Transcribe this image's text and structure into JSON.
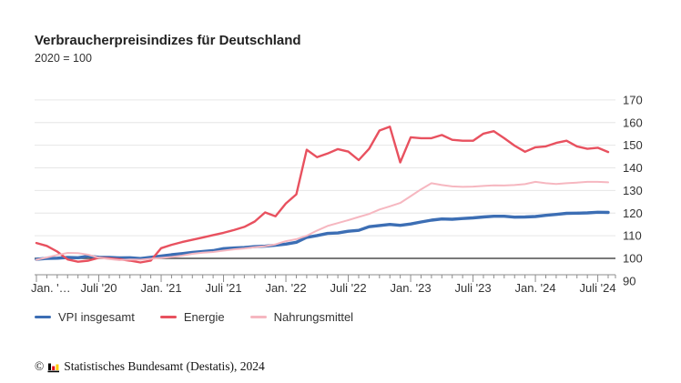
{
  "header": {
    "title": "Verbraucherpreisindizes für Deutschland",
    "subtitle": "2020 = 100"
  },
  "legend": {
    "items": [
      {
        "label": "VPI insgesamt",
        "color": "#3c6eb4"
      },
      {
        "label": "Energie",
        "color": "#e8515f"
      },
      {
        "label": "Nahrungsmittel",
        "color": "#f6b7c0"
      }
    ]
  },
  "footer": {
    "copyright_symbol": "©",
    "source_text": "Statistisches Bundesamt (Destatis), 2024",
    "logo_bar_colors": [
      "#000000",
      "#e30613",
      "#ffcc00"
    ]
  },
  "chart_data": {
    "type": "line",
    "title": "Verbraucherpreisindizes für Deutschland",
    "subtitle": "2020 = 100",
    "x_unit": "month",
    "x_start": "2020-01",
    "x_end": "2024-08",
    "x_tick_labels": [
      {
        "i": 0,
        "label": "Jan. '…"
      },
      {
        "i": 6,
        "label": "Juli '20"
      },
      {
        "i": 12,
        "label": "Jan. '21"
      },
      {
        "i": 18,
        "label": "Juli '21"
      },
      {
        "i": 24,
        "label": "Jan. '22"
      },
      {
        "i": 30,
        "label": "Juli '22"
      },
      {
        "i": 36,
        "label": "Jan. '23"
      },
      {
        "i": 42,
        "label": "Juli '23"
      },
      {
        "i": 48,
        "label": "Jan. '24"
      },
      {
        "i": 54,
        "label": "Juli '24"
      }
    ],
    "y_ticks": [
      90,
      100,
      110,
      120,
      130,
      140,
      150,
      160,
      170
    ],
    "ylim": [
      90,
      170
    ],
    "baseline_value": 100,
    "grid": "horizontal-light",
    "y_axis_side": "right",
    "legend_position": "bottom-left",
    "colors": {
      "grid": "#e6e6e6",
      "baseline": "#4d4d4d",
      "axis": "#8c8c8c",
      "tick_text": "#333333"
    },
    "series": [
      {
        "name": "VPI insgesamt",
        "color": "#3c6eb4",
        "stroke_width": 3.4,
        "values": [
          99.6,
          100.0,
          100.1,
          100.4,
          100.3,
          101.0,
          100.5,
          100.4,
          100.2,
          100.3,
          99.9,
          100.5,
          101.0,
          101.6,
          102.1,
          102.6,
          103.0,
          103.4,
          104.3,
          104.6,
          104.8,
          105.2,
          105.4,
          105.8,
          106.3,
          107.1,
          109.3,
          110.1,
          111.0,
          111.2,
          112.0,
          112.4,
          114.0,
          114.5,
          115.0,
          114.6,
          115.2,
          116.1,
          116.9,
          117.4,
          117.3,
          117.6,
          117.9,
          118.3,
          118.6,
          118.6,
          118.2,
          118.3,
          118.5,
          119.0,
          119.4,
          119.9,
          120.0,
          120.1,
          120.4,
          120.3
        ]
      },
      {
        "name": "Energie",
        "color": "#e8515f",
        "stroke_width": 2.4,
        "values": [
          106.8,
          105.5,
          103.0,
          99.5,
          98.5,
          99.0,
          100.3,
          100.0,
          99.6,
          99.0,
          98.2,
          99.0,
          104.5,
          106.0,
          107.2,
          108.2,
          109.2,
          110.3,
          111.3,
          112.5,
          113.9,
          116.3,
          120.3,
          118.6,
          124.3,
          128.3,
          148.0,
          144.7,
          146.3,
          148.3,
          147.2,
          143.4,
          148.4,
          156.5,
          158.2,
          142.4,
          153.5,
          153.1,
          153.1,
          154.5,
          152.4,
          152.0,
          152.0,
          155.1,
          156.2,
          153.1,
          149.8,
          147.1,
          149.1,
          149.5,
          151.0,
          152.0,
          149.5,
          148.4,
          148.9,
          147.0
        ]
      },
      {
        "name": "Nahrungsmittel",
        "color": "#f6b7c0",
        "stroke_width": 2.0,
        "values": [
          99.4,
          100.4,
          101.5,
          102.4,
          102.3,
          101.6,
          100.3,
          99.7,
          99.2,
          99.5,
          99.4,
          99.8,
          100.2,
          100.6,
          101.2,
          102.0,
          102.5,
          102.8,
          103.4,
          104.0,
          104.4,
          104.9,
          105.4,
          106.2,
          107.6,
          108.5,
          110.0,
          112.3,
          114.3,
          115.6,
          116.9,
          118.3,
          119.6,
          121.6,
          123.0,
          124.5,
          127.5,
          130.5,
          133.2,
          132.4,
          131.8,
          131.6,
          131.7,
          132.0,
          132.3,
          132.2,
          132.4,
          132.8,
          133.8,
          133.2,
          132.9,
          133.2,
          133.5,
          133.8,
          133.8,
          133.6
        ]
      }
    ]
  }
}
